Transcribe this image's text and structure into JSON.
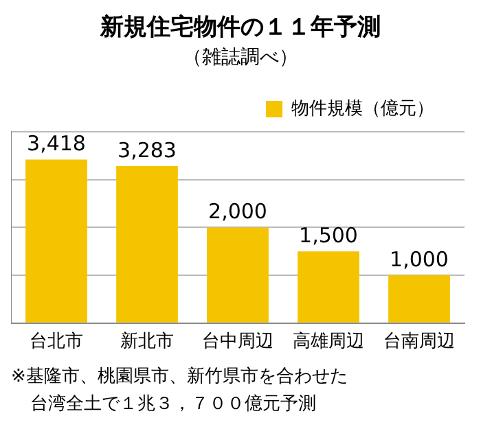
{
  "chart_data": {
    "type": "bar",
    "title": "新規住宅物件の１１年予測",
    "subtitle": "（雑誌調べ）",
    "categories": [
      "台北市",
      "新北市",
      "台中周辺",
      "高雄周辺",
      "台南周辺"
    ],
    "series": [
      {
        "name": "物件規模（億元）",
        "color": "#f5c400",
        "values": [
          3418,
          3283,
          2000,
          1500,
          1000
        ],
        "value_labels": [
          "3,418",
          "3,283",
          "2,000",
          "1,500",
          "1,000"
        ]
      }
    ],
    "ylim": [
      0,
      4000
    ],
    "yticks": [
      0,
      1000,
      2000,
      3000,
      4000
    ],
    "tick_labels": "x",
    "grid": "y",
    "legend": "top right",
    "annotations": [
      "※基隆市、桃園県市、新竹県市を合わせた",
      "台湾全土で１兆３，７００億元予測"
    ]
  }
}
